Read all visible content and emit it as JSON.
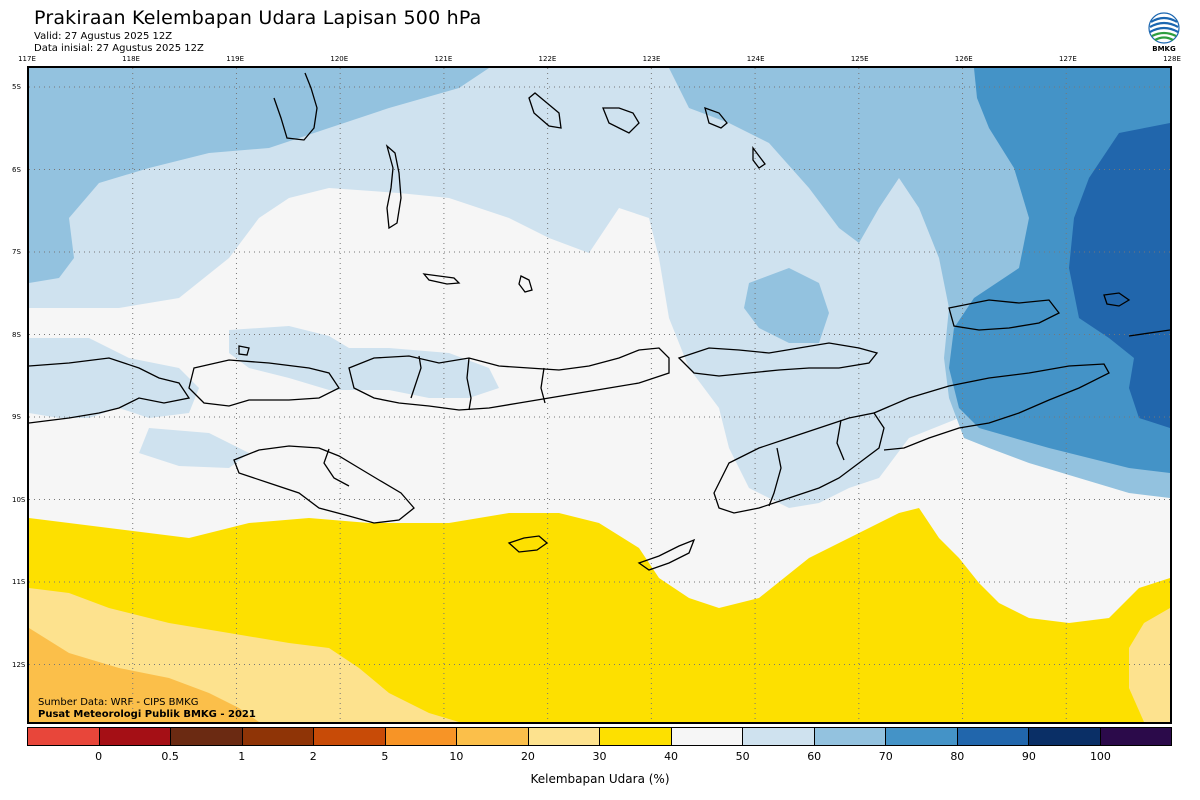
{
  "title": "Prakiraan Kelembapan Udara Lapisan 500 hPa",
  "valid": "Valid: 27 Agustus 2025 12Z",
  "initial": "Data inisial: 27 Agustus 2025 12Z",
  "logo_text": "BMKG",
  "source": "Sumber Data: WRF - CIPS BMKG",
  "organization": "Pusat Meteorologi Publik BMKG - 2021",
  "colorbar_title": "Kelembapan Udara (%)",
  "lon_labels": [
    "117E",
    "118E",
    "119E",
    "120E",
    "121E",
    "122E",
    "123E",
    "124E",
    "125E",
    "126E",
    "127E",
    "128E"
  ],
  "lat_labels": [
    "5S",
    "6S",
    "7S",
    "8S",
    "9S",
    "10S",
    "11S",
    "12S"
  ],
  "colorbar_ticks": [
    "0",
    "0.5",
    "1",
    "2",
    "5",
    "10",
    "20",
    "30",
    "40",
    "50",
    "60",
    "70",
    "80",
    "90",
    "100"
  ],
  "colorbar_colors": [
    "#e8463a",
    "#a50f15",
    "#6b2a12",
    "#8f3406",
    "#c84b07",
    "#f79426",
    "#fbbf4a",
    "#fde28e",
    "#fde000",
    "#f6f6f6",
    "#cfe2ef",
    "#93c2df",
    "#4493c7",
    "#2166ac",
    "#0a2f66",
    "#2b0a4a"
  ],
  "fill_colors": {
    "dry30": "#fde28e",
    "dry20": "#fbbf4a",
    "y40": "#fde000",
    "w50": "#f6f6f6",
    "b60": "#cfe2ef",
    "b70": "#93c2df",
    "b80": "#4493c7",
    "b90": "#2166ac"
  }
}
